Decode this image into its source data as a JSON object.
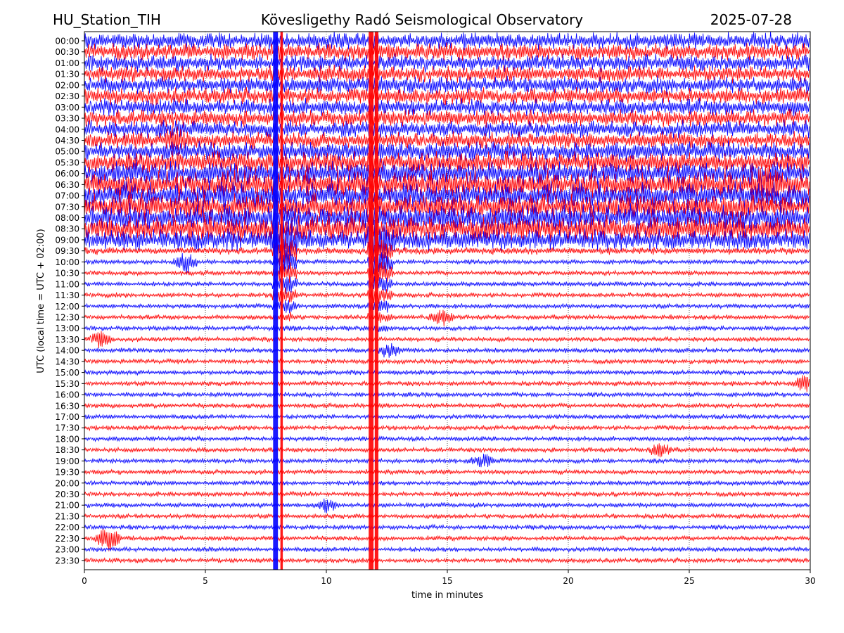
{
  "header": {
    "station": "HU_Station_TIH",
    "observatory": "Kövesligethy Radó Seismological Observatory",
    "date": "2025-07-28"
  },
  "chart_data": {
    "type": "line",
    "title": "Kövesligethy Radó Seismological Observatory",
    "xlabel": "time in minutes",
    "ylabel": "UTC (local time = UTC + 02:00)",
    "xlim": [
      0,
      30
    ],
    "x_ticks": [
      "0",
      "5",
      "10",
      "15",
      "20",
      "25",
      "30"
    ],
    "x_tick_values": [
      0,
      5,
      10,
      15,
      20,
      25,
      30
    ],
    "grid": "vertical dotted lines at each x tick",
    "row_labels": [
      "00:00",
      "00:30",
      "01:00",
      "01:30",
      "02:00",
      "02:30",
      "03:00",
      "03:30",
      "04:00",
      "04:30",
      "05:00",
      "05:30",
      "06:00",
      "06:30",
      "07:00",
      "07:30",
      "08:00",
      "08:30",
      "09:00",
      "09:30",
      "10:00",
      "10:30",
      "11:00",
      "11:30",
      "12:00",
      "12:30",
      "13:00",
      "13:30",
      "14:00",
      "14:30",
      "15:00",
      "15:30",
      "16:00",
      "16:30",
      "17:00",
      "17:30",
      "18:00",
      "18:30",
      "19:00",
      "19:30",
      "20:00",
      "20:30",
      "21:00",
      "21:30",
      "22:00",
      "22:30",
      "23:00",
      "23:30"
    ],
    "row_colors": [
      "#0000ff",
      "#ff0000"
    ],
    "row_amplitude": [
      14,
      14,
      14,
      14,
      14,
      14,
      14,
      14,
      14,
      14,
      16,
      18,
      20,
      22,
      22,
      22,
      22,
      22,
      18,
      6,
      4,
      4,
      4,
      4,
      4,
      4,
      4,
      4,
      4,
      4,
      4,
      4,
      4,
      4,
      4,
      4,
      4,
      4,
      4,
      4,
      4,
      4,
      4,
      4,
      4,
      4,
      4,
      4
    ],
    "saturated_bands_minutes": [
      [
        7.8,
        8.0
      ],
      [
        8.1,
        8.2
      ],
      [
        11.75,
        11.95
      ],
      [
        12.0,
        12.15
      ]
    ],
    "events": [
      {
        "row": "04:30",
        "minute": 3.7,
        "amplitude": 14
      },
      {
        "row": "10:00",
        "minute": 4.2,
        "amplitude": 14
      },
      {
        "row": "13:30",
        "minute": 0.7,
        "amplitude": 12
      },
      {
        "row": "12:30",
        "minute": 14.8,
        "amplitude": 12
      },
      {
        "row": "14:00",
        "minute": 12.6,
        "amplitude": 10
      },
      {
        "row": "15:30",
        "minute": 29.8,
        "amplitude": 14
      },
      {
        "row": "18:30",
        "minute": 23.8,
        "amplitude": 10
      },
      {
        "row": "19:00",
        "minute": 16.5,
        "amplitude": 8
      },
      {
        "row": "21:00",
        "minute": 10.0,
        "amplitude": 10
      },
      {
        "row": "22:30",
        "minute": 1.0,
        "amplitude": 24
      },
      {
        "row": "06:30",
        "minute": 28.3,
        "amplitude": 20
      }
    ]
  }
}
